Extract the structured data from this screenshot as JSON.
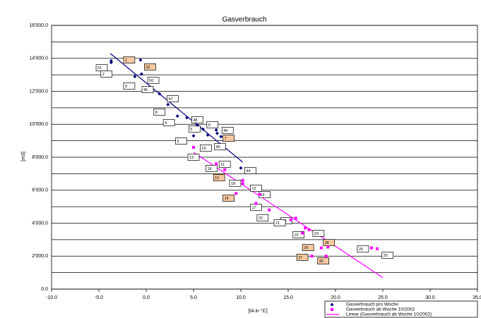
{
  "chart_data": {
    "type": "scatter",
    "title": "Gasverbrauch",
    "x_label": "[tA in °C]",
    "y_label": "[m3]",
    "xlim": [
      -10,
      35
    ],
    "xticks": [
      {
        "value": -10,
        "label": "-10.0"
      },
      {
        "value": -5,
        "label": "-5.0"
      },
      {
        "value": 0,
        "label": "0.0"
      },
      {
        "value": 5,
        "label": "5.0"
      },
      {
        "value": 10,
        "label": "10.0"
      },
      {
        "value": 15,
        "label": "15.0"
      },
      {
        "value": 20,
        "label": "20.0"
      },
      {
        "value": 25,
        "label": "25.0"
      },
      {
        "value": 30,
        "label": "30.0"
      },
      {
        "value": 35,
        "label": "35.0"
      }
    ],
    "ylim": [
      0,
      16000
    ],
    "yticks": [
      {
        "value": 0,
        "label": "0.0"
      },
      {
        "value": 2000,
        "label": "2'000.0"
      },
      {
        "value": 4000,
        "label": "4'000.0"
      },
      {
        "value": 6000,
        "label": "6'000.0"
      },
      {
        "value": 8000,
        "label": "8'000.0"
      },
      {
        "value": 10000,
        "label": "10'000.0"
      },
      {
        "value": 12000,
        "label": "12'000.0"
      },
      {
        "value": 14000,
        "label": "14'000.0"
      },
      {
        "value": 16000,
        "label": "16'000.0"
      }
    ],
    "minor_yticks": [
      1000,
      3000,
      5000,
      7000,
      9000,
      11000,
      13000,
      15000
    ],
    "grid": true,
    "series": [
      {
        "name": "Gasverbrauch pro Woche",
        "color": "#000080",
        "marker": "diamond",
        "x": [
          -3.7,
          -3.7,
          -0.6,
          -0.5,
          -1.2,
          1.4,
          2.3,
          3.3,
          4.3,
          5.0,
          5.4,
          6.0,
          7.5,
          7.4,
          7.9,
          10.0,
          6.5
        ],
        "y": [
          13850,
          13750,
          13900,
          13050,
          12900,
          11850,
          11200,
          10500,
          10400,
          9300,
          9950,
          9700,
          9450,
          9650,
          9250,
          7350,
          9350
        ]
      },
      {
        "name": "Gasverbrauch ab Woche 10/2002",
        "color": "#ff00ff",
        "marker": "square",
        "x": [
          5.0,
          7.4,
          8.3,
          10.2,
          10.2,
          9.5,
          12.0,
          13.0,
          15.3,
          15.8,
          16.8,
          17.2,
          18.5,
          19.2,
          19.0,
          17.5,
          23.8,
          24.4,
          11.6,
          16.5
        ],
        "y": [
          8600,
          7600,
          7250,
          6600,
          6400,
          5800,
          5750,
          4800,
          4200,
          4300,
          3700,
          3600,
          2500,
          2550,
          2000,
          2000,
          2500,
          2450,
          5200,
          3400
        ]
      }
    ],
    "trendlines": [
      {
        "color": "#000080",
        "x": [
          -3.8,
          10.2
        ],
        "y": [
          14300,
          7700
        ]
      },
      {
        "name": "Linear (Gasverbrauch ab Woche 10/2002)",
        "color": "#ff00ff",
        "x": [
          5.0,
          25.0
        ],
        "y": [
          8300,
          700
        ]
      }
    ],
    "annotations": [
      {
        "text": "1",
        "x": -1.8,
        "y": 13900,
        "highlight": true
      },
      {
        "text": "32",
        "x": 0.4,
        "y": 13480,
        "highlight": true
      },
      {
        "text": "51",
        "x": -4.7,
        "y": 13430,
        "highlight": false
      },
      {
        "text": "2",
        "x": -4.2,
        "y": 13050,
        "highlight": false
      },
      {
        "text": "50",
        "x": 0.75,
        "y": 12660,
        "highlight": false
      },
      {
        "text": "3",
        "x": -1.8,
        "y": 12320,
        "highlight": false
      },
      {
        "text": "46",
        "x": 0.15,
        "y": 12100,
        "highlight": false
      },
      {
        "text": "47",
        "x": 2.8,
        "y": 11550,
        "highlight": false
      },
      {
        "text": "8",
        "x": 1.4,
        "y": 10740,
        "highlight": false
      },
      {
        "text": "48",
        "x": 5.4,
        "y": 10270,
        "highlight": false
      },
      {
        "text": "4",
        "x": 2.4,
        "y": 10100,
        "highlight": false
      },
      {
        "text": "9",
        "x": 7.0,
        "y": 9970,
        "highlight": false
      },
      {
        "text": "5",
        "x": 5.1,
        "y": 9710,
        "highlight": false
      },
      {
        "text": "49",
        "x": 8.6,
        "y": 9630,
        "highlight": false
      },
      {
        "text": "7",
        "x": 8.7,
        "y": 9150,
        "highlight": true
      },
      {
        "text": "6",
        "x": 3.7,
        "y": 8980,
        "highlight": false
      },
      {
        "text": "45",
        "x": 7.8,
        "y": 8640,
        "highlight": false
      },
      {
        "text": "10",
        "x": 6.3,
        "y": 8560,
        "highlight": false
      },
      {
        "text": "13",
        "x": 5.0,
        "y": 8000,
        "highlight": false
      },
      {
        "text": "11",
        "x": 8.3,
        "y": 7570,
        "highlight": false
      },
      {
        "text": "44",
        "x": 11.0,
        "y": 7190,
        "highlight": false
      },
      {
        "text": "16",
        "x": 6.9,
        "y": 7320,
        "highlight": false
      },
      {
        "text": "15",
        "x": 7.7,
        "y": 6760,
        "highlight": true
      },
      {
        "text": "18",
        "x": 9.4,
        "y": 6420,
        "highlight": false
      },
      {
        "text": "12",
        "x": 11.6,
        "y": 6120,
        "highlight": false
      },
      {
        "text": "19",
        "x": 12.5,
        "y": 5730,
        "highlight": false
      },
      {
        "text": "14",
        "x": 8.7,
        "y": 5520,
        "highlight": true
      },
      {
        "text": "17",
        "x": 11.6,
        "y": 4960,
        "highlight": false
      },
      {
        "text": "22",
        "x": 12.3,
        "y": 4320,
        "highlight": false
      },
      {
        "text": "20",
        "x": 14.8,
        "y": 4150,
        "highlight": false
      },
      {
        "text": "21",
        "x": 14.1,
        "y": 4020,
        "highlight": false
      },
      {
        "text": "23",
        "x": 18.2,
        "y": 3380,
        "highlight": false
      },
      {
        "text": "22",
        "x": 16.1,
        "y": 3300,
        "highlight": false
      },
      {
        "text": "28",
        "x": 19.3,
        "y": 2820,
        "highlight": true
      },
      {
        "text": "29",
        "x": 17.1,
        "y": 2520,
        "highlight": true
      },
      {
        "text": "26",
        "x": 22.9,
        "y": 2440,
        "highlight": false
      },
      {
        "text": "25",
        "x": 25.5,
        "y": 2050,
        "highlight": false
      },
      {
        "text": "27",
        "x": 16.5,
        "y": 1930,
        "highlight": true
      },
      {
        "text": "30",
        "x": 18.7,
        "y": 1710,
        "highlight": true
      }
    ]
  }
}
